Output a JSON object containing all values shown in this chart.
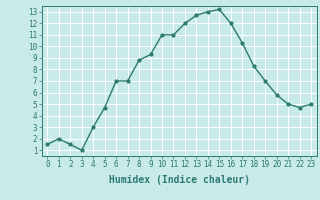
{
  "x": [
    0,
    1,
    2,
    3,
    4,
    5,
    6,
    7,
    8,
    9,
    10,
    11,
    12,
    13,
    14,
    15,
    16,
    17,
    18,
    19,
    20,
    21,
    22,
    23
  ],
  "y": [
    1.5,
    2.0,
    1.5,
    1.0,
    3.0,
    4.7,
    7.0,
    7.0,
    8.8,
    9.3,
    11.0,
    11.0,
    12.0,
    12.7,
    13.0,
    13.2,
    12.0,
    10.3,
    8.3,
    7.0,
    5.8,
    5.0,
    4.7,
    5.0
  ],
  "line_color": "#2d7a6e",
  "marker": "o",
  "marker_size": 2,
  "line_width": 1.0,
  "xlabel": "Humidex (Indice chaleur)",
  "ylabel": "",
  "xlim": [
    -0.5,
    23.5
  ],
  "ylim": [
    0.5,
    13.5
  ],
  "yticks": [
    1,
    2,
    3,
    4,
    5,
    6,
    7,
    8,
    9,
    10,
    11,
    12,
    13
  ],
  "xticks": [
    0,
    1,
    2,
    3,
    4,
    5,
    6,
    7,
    8,
    9,
    10,
    11,
    12,
    13,
    14,
    15,
    16,
    17,
    18,
    19,
    20,
    21,
    22,
    23
  ],
  "bg_color": "#c8eaea",
  "grid_color": "#ffffff",
  "tick_label_fontsize": 5.5,
  "xlabel_fontsize": 7
}
